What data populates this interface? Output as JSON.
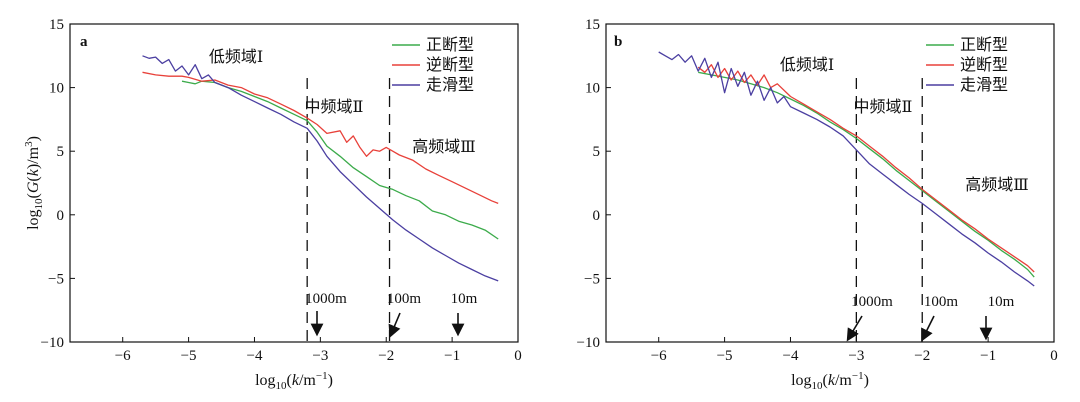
{
  "chart_data": [
    {
      "type": "line",
      "panel": "a",
      "xlabel": "log10(k/m⁻¹)",
      "ylabel": "log10(G(k)/m³)",
      "xlim": [
        -6.8,
        0
      ],
      "ylim": [
        -10,
        15
      ],
      "xticks": [
        -6,
        -5,
        -4,
        -3,
        -2,
        -1,
        0
      ],
      "yticks": [
        -10,
        -5,
        0,
        5,
        10,
        15
      ],
      "grid": false,
      "legend_position": "top-right",
      "legend": [
        "正断型",
        "逆断型",
        "走滑型"
      ],
      "region_labels": [
        "低频域Ⅰ",
        "中频域Ⅱ",
        "高频域Ⅲ"
      ],
      "dividers": [
        -3.2,
        -1.95
      ],
      "annotations": [
        {
          "text": "1000m",
          "x": -3.0
        },
        {
          "text": "100m",
          "x": -1.95
        },
        {
          "text": "10m",
          "x": -1.0
        }
      ],
      "series": [
        {
          "name": "正断型",
          "color": "#3cab4b",
          "x": [
            -5.1,
            -5.0,
            -4.9,
            -4.8,
            -4.6,
            -4.4,
            -4.2,
            -4.0,
            -3.8,
            -3.6,
            -3.4,
            -3.2,
            -3.05,
            -2.9,
            -2.7,
            -2.5,
            -2.3,
            -2.1,
            -1.9,
            -1.7,
            -1.5,
            -1.3,
            -1.1,
            -0.9,
            -0.7,
            -0.5,
            -0.3
          ],
          "y": [
            10.5,
            10.4,
            10.3,
            10.5,
            10.4,
            10.0,
            9.7,
            9.3,
            8.9,
            8.4,
            7.9,
            7.4,
            6.5,
            5.4,
            4.6,
            3.7,
            3.0,
            2.3,
            2.0,
            1.5,
            1.1,
            0.3,
            0.0,
            -0.5,
            -0.8,
            -1.2,
            -1.9
          ]
        },
        {
          "name": "逆断型",
          "color": "#e8413a",
          "x": [
            -5.7,
            -5.5,
            -5.3,
            -5.1,
            -5.0,
            -4.8,
            -4.6,
            -4.4,
            -4.2,
            -4.0,
            -3.8,
            -3.6,
            -3.4,
            -3.2,
            -3.05,
            -2.9,
            -2.7,
            -2.6,
            -2.5,
            -2.4,
            -2.3,
            -2.2,
            -2.1,
            -2.0,
            -1.9,
            -1.8,
            -1.6,
            -1.4,
            -1.2,
            -1.0,
            -0.8,
            -0.6,
            -0.4,
            -0.3
          ],
          "y": [
            11.2,
            11.0,
            10.9,
            10.9,
            10.8,
            10.5,
            10.6,
            10.2,
            10.0,
            9.5,
            9.2,
            8.7,
            8.2,
            7.6,
            7.1,
            6.4,
            6.6,
            5.7,
            6.2,
            5.3,
            4.6,
            5.1,
            5.0,
            5.3,
            5.0,
            4.7,
            4.3,
            3.6,
            3.1,
            2.6,
            2.1,
            1.6,
            1.1,
            0.9
          ]
        },
        {
          "name": "走滑型",
          "color": "#4b3fa1",
          "x": [
            -5.7,
            -5.6,
            -5.5,
            -5.4,
            -5.3,
            -5.2,
            -5.1,
            -5.0,
            -4.9,
            -4.8,
            -4.7,
            -4.6,
            -4.4,
            -4.2,
            -4.0,
            -3.8,
            -3.6,
            -3.4,
            -3.2,
            -3.05,
            -2.9,
            -2.7,
            -2.5,
            -2.3,
            -2.1,
            -1.9,
            -1.7,
            -1.5,
            -1.3,
            -1.1,
            -0.9,
            -0.7,
            -0.5,
            -0.3
          ],
          "y": [
            12.5,
            12.3,
            12.4,
            11.9,
            12.2,
            11.3,
            11.7,
            11.0,
            11.8,
            10.7,
            11.0,
            10.4,
            10.0,
            9.4,
            8.9,
            8.4,
            7.9,
            7.3,
            6.8,
            5.8,
            4.6,
            3.4,
            2.4,
            1.4,
            0.5,
            -0.4,
            -1.2,
            -1.9,
            -2.6,
            -3.2,
            -3.8,
            -4.3,
            -4.8,
            -5.2
          ]
        }
      ]
    },
    {
      "type": "line",
      "panel": "b",
      "xlabel": "log10(k/m⁻¹)",
      "ylabel": "",
      "xlim": [
        -6.8,
        0
      ],
      "ylim": [
        -10,
        15
      ],
      "xticks": [
        -6,
        -5,
        -4,
        -3,
        -2,
        -1,
        0
      ],
      "yticks": [
        -10,
        -5,
        0,
        5,
        10,
        15
      ],
      "grid": false,
      "legend_position": "top-right",
      "legend": [
        "正断型",
        "逆断型",
        "走滑型"
      ],
      "region_labels": [
        "低频域Ⅰ",
        "中频域Ⅱ",
        "高频域Ⅲ"
      ],
      "dividers": [
        -3.0,
        -2.0
      ],
      "annotations": [
        {
          "text": "1000m",
          "x": -3.0
        },
        {
          "text": "100m",
          "x": -1.9
        },
        {
          "text": "10m",
          "x": -1.0
        }
      ],
      "series": [
        {
          "name": "正断型",
          "color": "#3cab4b",
          "x": [
            -5.4,
            -5.2,
            -5.0,
            -4.8,
            -4.6,
            -4.4,
            -4.2,
            -4.0,
            -3.8,
            -3.6,
            -3.4,
            -3.2,
            -3.0,
            -2.8,
            -2.6,
            -2.4,
            -2.2,
            -2.0,
            -1.8,
            -1.6,
            -1.4,
            -1.2,
            -1.0,
            -0.8,
            -0.6,
            -0.4,
            -0.3
          ],
          "y": [
            11.2,
            11.0,
            10.8,
            10.6,
            10.3,
            10.0,
            9.6,
            9.1,
            8.6,
            8.0,
            7.3,
            6.7,
            6.0,
            5.2,
            4.4,
            3.5,
            2.7,
            1.9,
            1.1,
            0.3,
            -0.5,
            -1.3,
            -2.0,
            -2.8,
            -3.5,
            -4.3,
            -4.9
          ]
        },
        {
          "name": "逆断型",
          "color": "#e8413a",
          "x": [
            -5.4,
            -5.3,
            -5.2,
            -5.1,
            -5.0,
            -4.9,
            -4.8,
            -4.7,
            -4.6,
            -4.5,
            -4.4,
            -4.3,
            -4.2,
            -4.0,
            -3.8,
            -3.6,
            -3.4,
            -3.2,
            -3.0,
            -2.8,
            -2.6,
            -2.4,
            -2.2,
            -2.0,
            -1.8,
            -1.6,
            -1.4,
            -1.2,
            -1.0,
            -0.8,
            -0.6,
            -0.4,
            -0.3
          ],
          "y": [
            11.6,
            11.2,
            11.8,
            10.8,
            11.5,
            10.6,
            11.3,
            10.4,
            11.0,
            10.2,
            11.0,
            10.0,
            10.3,
            9.3,
            8.7,
            8.1,
            7.5,
            6.8,
            6.2,
            5.4,
            4.6,
            3.7,
            2.9,
            2.0,
            1.2,
            0.4,
            -0.4,
            -1.1,
            -1.9,
            -2.6,
            -3.3,
            -4.0,
            -4.5
          ]
        },
        {
          "name": "走滑型",
          "color": "#4b3fa1",
          "x": [
            -6.0,
            -5.9,
            -5.8,
            -5.7,
            -5.6,
            -5.5,
            -5.4,
            -5.3,
            -5.2,
            -5.1,
            -5.0,
            -4.9,
            -4.8,
            -4.7,
            -4.6,
            -4.5,
            -4.4,
            -4.3,
            -4.2,
            -4.1,
            -4.0,
            -3.8,
            -3.6,
            -3.4,
            -3.2,
            -3.0,
            -2.8,
            -2.6,
            -2.4,
            -2.2,
            -2.0,
            -1.8,
            -1.6,
            -1.4,
            -1.2,
            -1.0,
            -0.8,
            -0.6,
            -0.4,
            -0.3
          ],
          "y": [
            12.8,
            12.5,
            12.2,
            12.6,
            12.0,
            12.5,
            11.3,
            12.3,
            10.8,
            12.0,
            9.6,
            11.5,
            10.1,
            11.2,
            9.4,
            10.5,
            9.0,
            10.0,
            8.8,
            9.3,
            8.5,
            8.0,
            7.5,
            6.9,
            6.2,
            5.1,
            4.0,
            3.2,
            2.4,
            1.6,
            0.9,
            0.1,
            -0.7,
            -1.5,
            -2.2,
            -3.0,
            -3.7,
            -4.5,
            -5.2,
            -5.6
          ]
        }
      ]
    }
  ],
  "panels": [
    {
      "letter": "a",
      "xlabel": "log10(k/m⁻¹)",
      "ylabel": "log10(G(k)/m³)"
    },
    {
      "letter": "b",
      "xlabel": "log10(k/m⁻¹)",
      "ylabel": ""
    }
  ]
}
